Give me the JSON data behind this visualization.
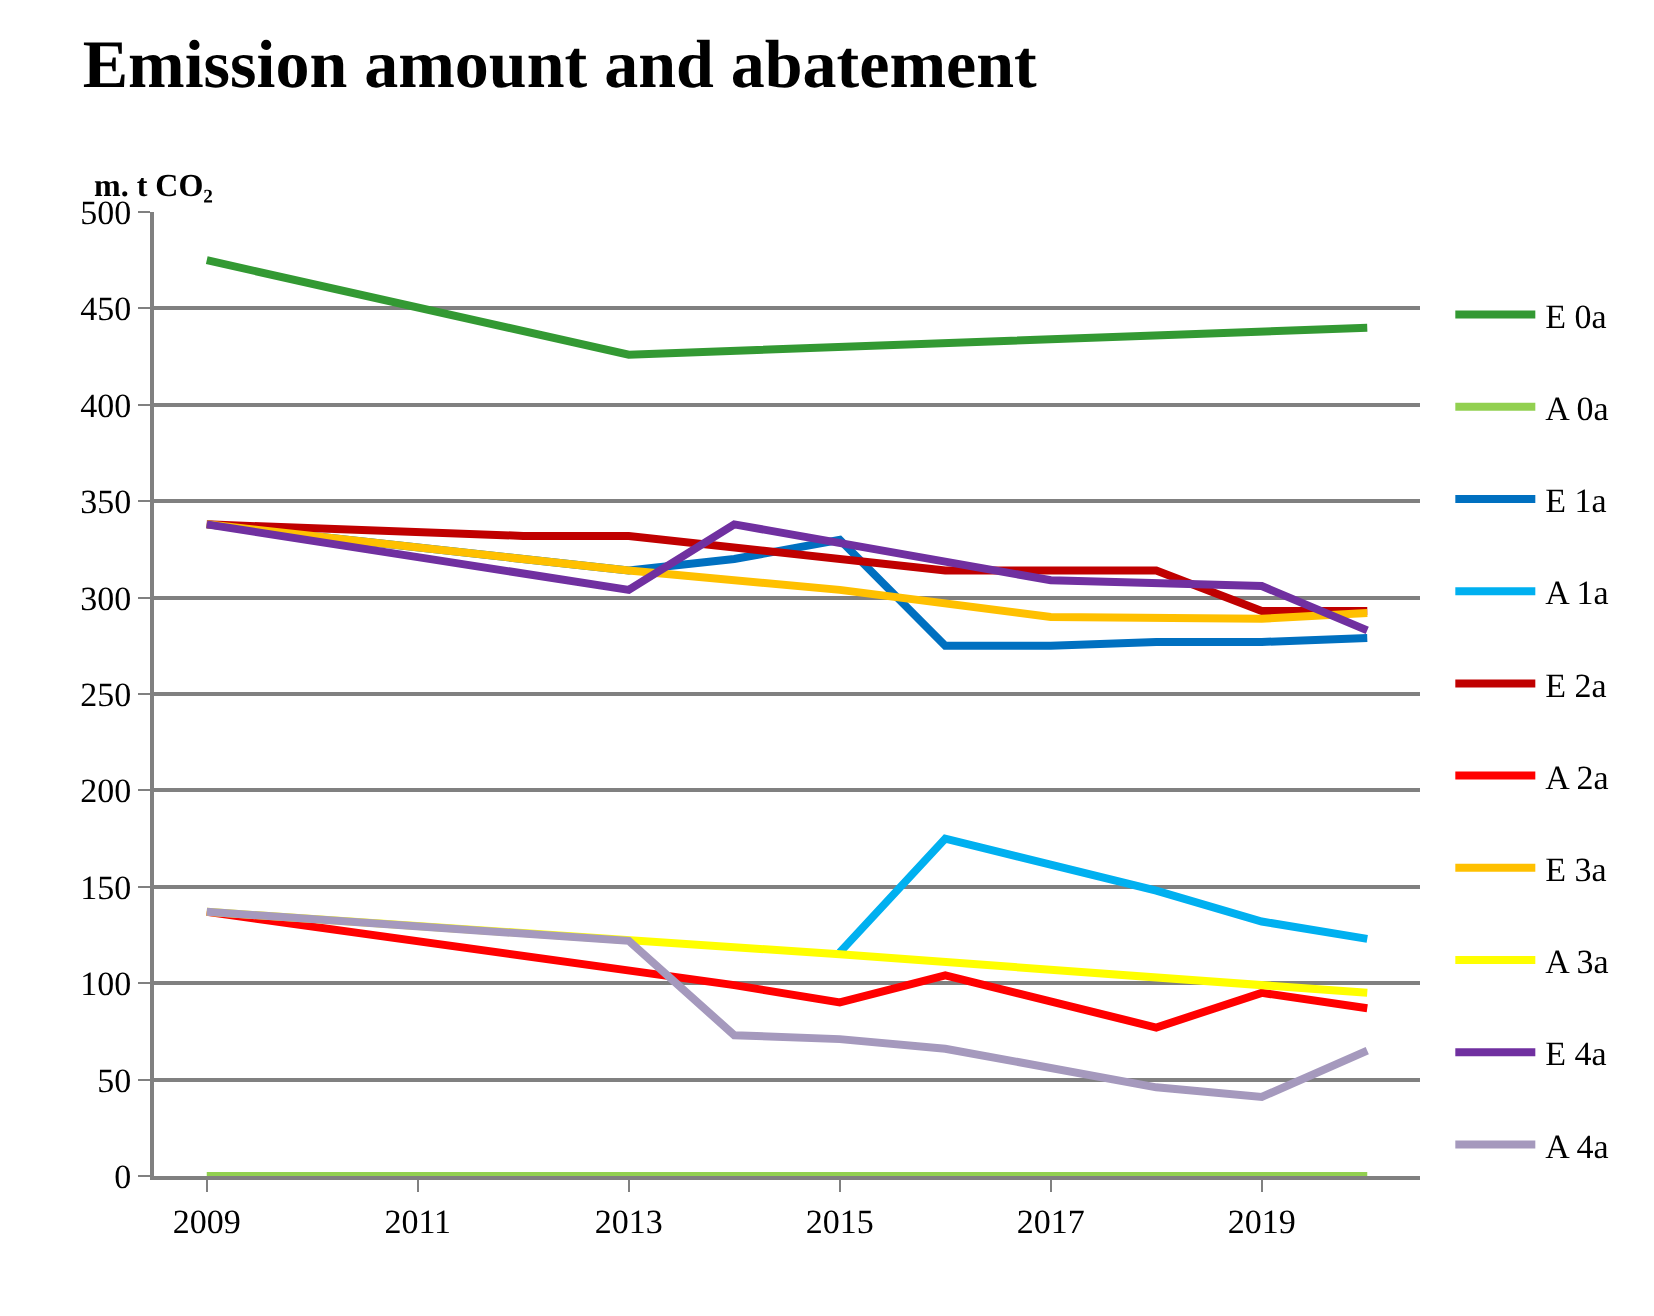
{
  "chart_data": {
    "type": "line",
    "title": "Emission amount and abatement",
    "ylabel": "m. t CO₂",
    "xlim": [
      2008.5,
      2020.5
    ],
    "xticks": [
      2009,
      2011,
      2013,
      2015,
      2017,
      2019
    ],
    "ylim": [
      0,
      500
    ],
    "yticks": [
      0,
      50,
      100,
      150,
      200,
      250,
      300,
      350,
      400,
      450,
      500
    ],
    "grid": "y",
    "legend": "right",
    "marker": "none",
    "line_style": "solid",
    "series": [
      {
        "name": "E 0a",
        "color": "#339933",
        "x": [
          2009,
          2013,
          2020
        ],
        "values": [
          475,
          426,
          440
        ]
      },
      {
        "name": "A 0a",
        "color": "#92d050",
        "x": [
          2009,
          2020
        ],
        "values": [
          0,
          0
        ]
      },
      {
        "name": "E 1a",
        "color": "#0070c0",
        "x": [
          2009,
          2013,
          2014,
          2015,
          2016,
          2017,
          2018,
          2019,
          2020
        ],
        "values": [
          338,
          314,
          320,
          330,
          275,
          275,
          277,
          277,
          279
        ]
      },
      {
        "name": "A 1a",
        "color": "#00b0f0",
        "x": [
          2015,
          2016,
          2018,
          2019,
          2020
        ],
        "values": [
          116,
          175,
          148,
          132,
          123
        ]
      },
      {
        "name": "E 2a",
        "color": "#c00000",
        "x": [
          2009,
          2012,
          2013,
          2016,
          2018,
          2019,
          2020
        ],
        "values": [
          338,
          332,
          332,
          314,
          314,
          293,
          293
        ]
      },
      {
        "name": "A 2a",
        "color": "#ff0000",
        "x": [
          2009,
          2014,
          2015,
          2016,
          2018,
          2019,
          2020
        ],
        "values": [
          137,
          99,
          90,
          104,
          77,
          95,
          87
        ]
      },
      {
        "name": "E 3a",
        "color": "#ffc000",
        "x": [
          2009,
          2013,
          2015,
          2017,
          2019,
          2020
        ],
        "values": [
          338,
          314,
          304,
          290,
          289,
          292
        ]
      },
      {
        "name": "A 3a",
        "color": "#ffff00",
        "x": [
          2009,
          2015,
          2020
        ],
        "values": [
          137,
          115,
          95
        ]
      },
      {
        "name": "E 4a",
        "color": "#7030a0",
        "x": [
          2009,
          2011,
          2013,
          2014,
          2017,
          2019,
          2020
        ],
        "values": [
          338,
          321,
          304,
          338,
          309,
          306,
          283
        ]
      },
      {
        "name": "A 4a",
        "color": "#a599bd",
        "x": [
          2009,
          2013,
          2014,
          2015,
          2016,
          2018,
          2019,
          2020
        ],
        "values": [
          137,
          122,
          73,
          71,
          66,
          46,
          41,
          65
        ]
      }
    ]
  }
}
